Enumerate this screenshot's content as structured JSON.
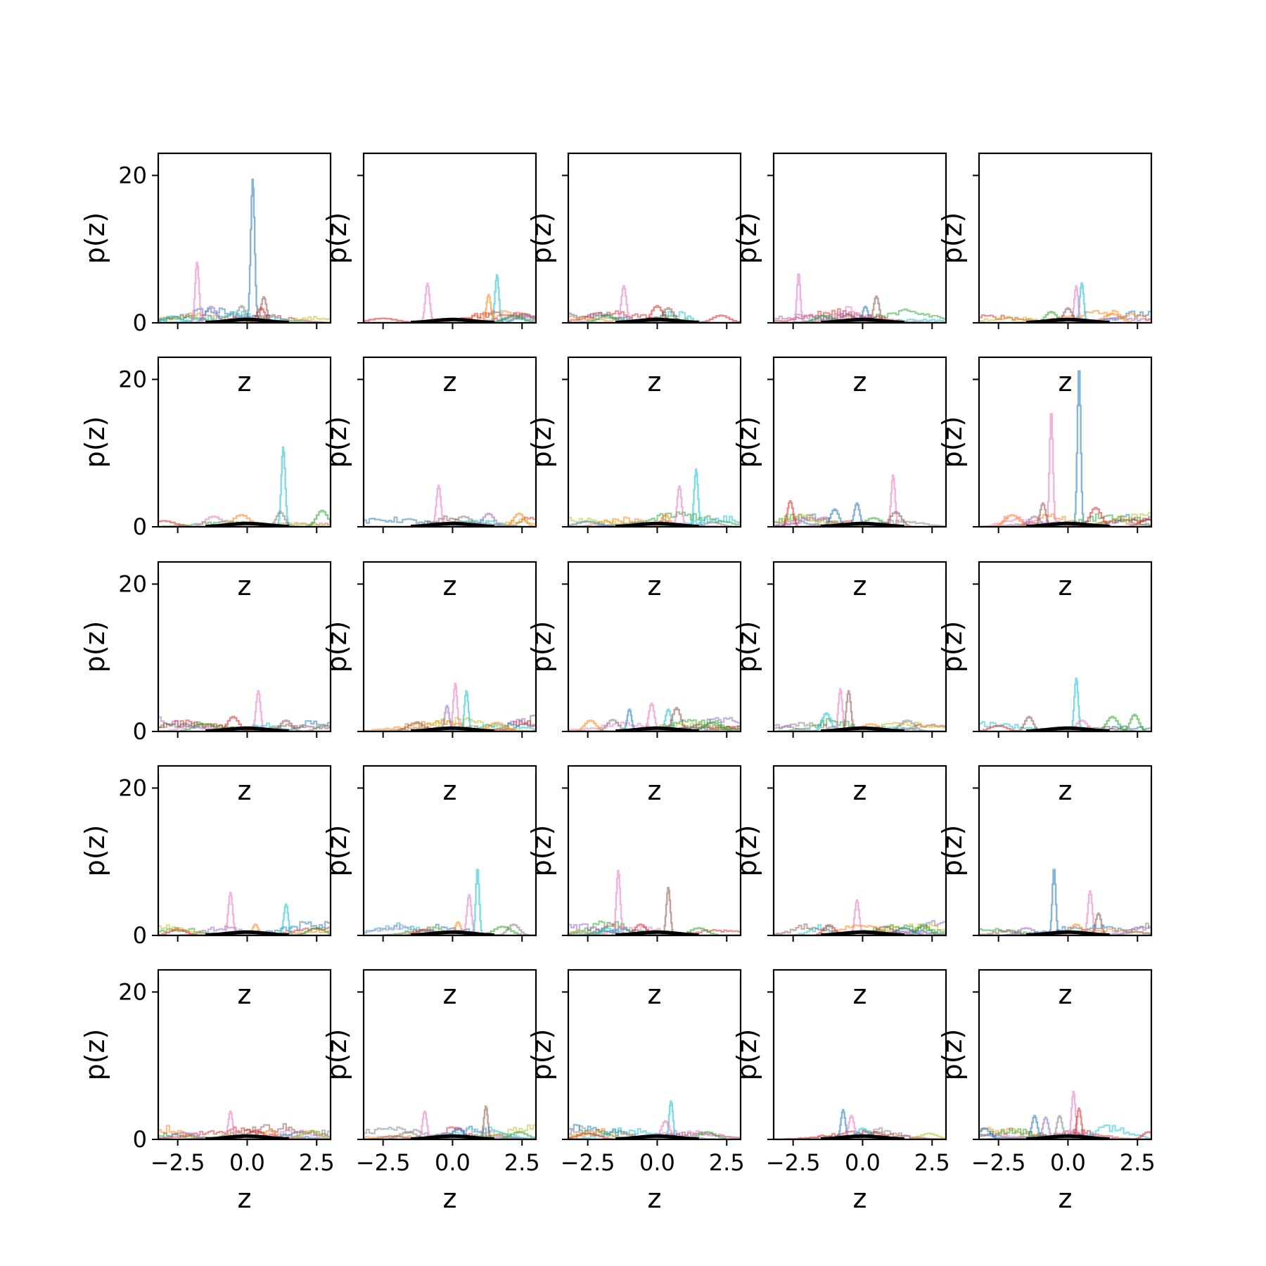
{
  "figure": {
    "rows": 5,
    "cols": 5,
    "sharex": true,
    "sharey": true,
    "bottom_ticklabels_only_last_row": true,
    "left_ticklabels_only_first_col": true
  },
  "chart_data": {
    "type": "line",
    "subtype": "step-histogram-grid",
    "xlabel": "z",
    "ylabel": "p(z)",
    "xlim": [
      -3.2,
      3.0
    ],
    "ylim": [
      0,
      23
    ],
    "xticks": [
      -2.5,
      0.0,
      2.5
    ],
    "xtick_labels": [
      "−2.5",
      "0.0",
      "2.5"
    ],
    "yticks": [
      0,
      20
    ],
    "ytick_labels": [
      "0",
      "20"
    ],
    "grid": false,
    "legend": "none",
    "palette": [
      "#1f77b4",
      "#ff7f0e",
      "#2ca02c",
      "#d62728",
      "#9467bd",
      "#8c564b",
      "#e377c2",
      "#7f7f7f",
      "#bcbd22",
      "#17becf"
    ],
    "reference_color": "#000000",
    "panels": [
      {
        "peaks": [
          {
            "c": 0,
            "x": 0.2,
            "h": 19.5,
            "w": 0.07
          },
          {
            "c": 6,
            "x": -1.8,
            "h": 8.2,
            "w": 0.07
          },
          {
            "c": 5,
            "x": 0.6,
            "h": 3.5,
            "w": 0.1
          },
          {
            "c": 4,
            "x": -1.3,
            "h": 2.2,
            "w": 0.2
          },
          {
            "c": 9,
            "x": -2.7,
            "h": 0.9,
            "w": 0.3
          },
          {
            "c": 3,
            "x": 0.5,
            "h": 2.0,
            "w": 0.15
          },
          {
            "c": 7,
            "x": -0.2,
            "h": 2.3,
            "w": 0.15
          }
        ]
      },
      {
        "peaks": [
          {
            "c": 9,
            "x": 1.6,
            "h": 6.5,
            "w": 0.07
          },
          {
            "c": 6,
            "x": -0.9,
            "h": 5.3,
            "w": 0.08
          },
          {
            "c": 1,
            "x": 1.3,
            "h": 3.8,
            "w": 0.08
          },
          {
            "c": 3,
            "x": -2.5,
            "h": 0.6,
            "w": 0.5
          },
          {
            "c": 7,
            "x": 2.6,
            "h": 1.2,
            "w": 0.3
          },
          {
            "c": 2,
            "x": 2.2,
            "h": 1.0,
            "w": 0.3
          }
        ]
      },
      {
        "peaks": [
          {
            "c": 6,
            "x": -1.2,
            "h": 5.0,
            "w": 0.09
          },
          {
            "c": 3,
            "x": 0.0,
            "h": 2.3,
            "w": 0.2
          },
          {
            "c": 5,
            "x": 0.4,
            "h": 2.0,
            "w": 0.2
          },
          {
            "c": 3,
            "x": 2.3,
            "h": 1.0,
            "w": 0.3
          },
          {
            "c": 2,
            "x": -1.8,
            "h": 1.0,
            "w": 0.3
          }
        ]
      },
      {
        "peaks": [
          {
            "c": 6,
            "x": -2.3,
            "h": 6.8,
            "w": 0.06
          },
          {
            "c": 5,
            "x": 0.5,
            "h": 3.6,
            "w": 0.1
          },
          {
            "c": 0,
            "x": 0.1,
            "h": 2.2,
            "w": 0.1
          },
          {
            "c": 2,
            "x": -1.4,
            "h": 1.0,
            "w": 0.3
          },
          {
            "c": 4,
            "x": -0.5,
            "h": 1.0,
            "w": 0.3
          }
        ]
      },
      {
        "peaks": [
          {
            "c": 9,
            "x": 0.5,
            "h": 5.4,
            "w": 0.07
          },
          {
            "c": 6,
            "x": 0.3,
            "h": 5.0,
            "w": 0.07
          },
          {
            "c": 5,
            "x": 0.0,
            "h": 2.0,
            "w": 0.15
          },
          {
            "c": 1,
            "x": 1.6,
            "h": 1.2,
            "w": 0.3
          },
          {
            "c": 2,
            "x": -0.6,
            "h": 1.5,
            "w": 0.2
          }
        ]
      },
      {
        "peaks": [
          {
            "c": 9,
            "x": 1.3,
            "h": 10.8,
            "w": 0.07
          },
          {
            "c": 2,
            "x": 2.7,
            "h": 2.2,
            "w": 0.2
          },
          {
            "c": 1,
            "x": -0.2,
            "h": 1.6,
            "w": 0.3
          },
          {
            "c": 3,
            "x": -3.0,
            "h": 0.8,
            "w": 0.4
          },
          {
            "c": 6,
            "x": -1.2,
            "h": 1.4,
            "w": 0.3
          },
          {
            "c": 7,
            "x": 1.2,
            "h": 2.0,
            "w": 0.15
          }
        ]
      },
      {
        "peaks": [
          {
            "c": 6,
            "x": -0.5,
            "h": 5.6,
            "w": 0.08
          },
          {
            "c": 1,
            "x": 2.4,
            "h": 1.8,
            "w": 0.2
          },
          {
            "c": 4,
            "x": 1.3,
            "h": 1.8,
            "w": 0.2
          },
          {
            "c": 7,
            "x": 0.4,
            "h": 1.4,
            "w": 0.3
          }
        ]
      },
      {
        "peaks": [
          {
            "c": 9,
            "x": 1.4,
            "h": 7.8,
            "w": 0.07
          },
          {
            "c": 6,
            "x": 0.8,
            "h": 5.5,
            "w": 0.08
          },
          {
            "c": 1,
            "x": 0.3,
            "h": 1.6,
            "w": 0.15
          },
          {
            "c": 0,
            "x": -2.5,
            "h": 0.7,
            "w": 0.4
          },
          {
            "c": 7,
            "x": 2.0,
            "h": 0.6,
            "w": 0.3
          }
        ]
      },
      {
        "peaks": [
          {
            "c": 6,
            "x": 1.1,
            "h": 7.0,
            "w": 0.07
          },
          {
            "c": 3,
            "x": -2.6,
            "h": 3.5,
            "w": 0.1
          },
          {
            "c": 0,
            "x": -0.2,
            "h": 3.2,
            "w": 0.1
          },
          {
            "c": 0,
            "x": -1.0,
            "h": 2.4,
            "w": 0.15
          },
          {
            "c": 5,
            "x": 1.2,
            "h": 2.0,
            "w": 0.2
          },
          {
            "c": 2,
            "x": 0.4,
            "h": 1.2,
            "w": 0.3
          }
        ]
      },
      {
        "peaks": [
          {
            "c": 0,
            "x": 0.4,
            "h": 21.8,
            "w": 0.06
          },
          {
            "c": 6,
            "x": -0.6,
            "h": 15.8,
            "w": 0.06
          },
          {
            "c": 5,
            "x": -0.9,
            "h": 3.2,
            "w": 0.1
          },
          {
            "c": 3,
            "x": 1.0,
            "h": 2.6,
            "w": 0.2
          },
          {
            "c": 3,
            "x": 2.9,
            "h": 1.0,
            "w": 0.3
          },
          {
            "c": 1,
            "x": -2.0,
            "h": 1.6,
            "w": 0.25
          },
          {
            "c": 4,
            "x": -1.2,
            "h": 1.4,
            "w": 0.2
          }
        ]
      },
      {
        "peaks": [
          {
            "c": 6,
            "x": 0.4,
            "h": 5.5,
            "w": 0.08
          },
          {
            "c": 3,
            "x": -0.5,
            "h": 2.0,
            "w": 0.2
          },
          {
            "c": 5,
            "x": 1.4,
            "h": 1.5,
            "w": 0.2
          },
          {
            "c": 2,
            "x": -1.5,
            "h": 1.0,
            "w": 0.4
          },
          {
            "c": 7,
            "x": 2.8,
            "h": 0.8,
            "w": 0.3
          }
        ]
      },
      {
        "peaks": [
          {
            "c": 6,
            "x": 0.1,
            "h": 6.5,
            "w": 0.07
          },
          {
            "c": 9,
            "x": 0.5,
            "h": 5.5,
            "w": 0.07
          },
          {
            "c": 4,
            "x": -0.2,
            "h": 3.5,
            "w": 0.08
          },
          {
            "c": 5,
            "x": -1.3,
            "h": 1.2,
            "w": 0.3
          },
          {
            "c": 1,
            "x": 1.6,
            "h": 1.2,
            "w": 0.3
          }
        ]
      },
      {
        "peaks": [
          {
            "c": 0,
            "x": -1.0,
            "h": 3.0,
            "w": 0.08
          },
          {
            "c": 6,
            "x": -0.2,
            "h": 3.8,
            "w": 0.1
          },
          {
            "c": 9,
            "x": 0.4,
            "h": 3.0,
            "w": 0.1
          },
          {
            "c": 5,
            "x": 0.7,
            "h": 3.2,
            "w": 0.15
          },
          {
            "c": 1,
            "x": -2.4,
            "h": 1.5,
            "w": 0.2
          },
          {
            "c": 2,
            "x": 2.0,
            "h": 1.2,
            "w": 0.3
          },
          {
            "c": 7,
            "x": -1.6,
            "h": 1.6,
            "w": 0.2
          }
        ]
      },
      {
        "peaks": [
          {
            "c": 6,
            "x": -0.8,
            "h": 5.8,
            "w": 0.07
          },
          {
            "c": 5,
            "x": -0.5,
            "h": 5.5,
            "w": 0.08
          },
          {
            "c": 9,
            "x": -1.3,
            "h": 2.5,
            "w": 0.15
          },
          {
            "c": 7,
            "x": 1.6,
            "h": 1.5,
            "w": 0.25
          },
          {
            "c": 1,
            "x": 0.3,
            "h": 1.0,
            "w": 0.3
          }
        ]
      },
      {
        "peaks": [
          {
            "c": 9,
            "x": 0.3,
            "h": 7.2,
            "w": 0.07
          },
          {
            "c": 5,
            "x": -1.4,
            "h": 2.0,
            "w": 0.15
          },
          {
            "c": 2,
            "x": 1.6,
            "h": 2.0,
            "w": 0.2
          },
          {
            "c": 2,
            "x": 2.4,
            "h": 2.3,
            "w": 0.15
          },
          {
            "c": 3,
            "x": -2.5,
            "h": 0.8,
            "w": 0.3
          },
          {
            "c": 6,
            "x": 0.5,
            "h": 1.5,
            "w": 0.2
          }
        ]
      },
      {
        "peaks": [
          {
            "c": 6,
            "x": -0.6,
            "h": 5.8,
            "w": 0.08
          },
          {
            "c": 9,
            "x": 1.4,
            "h": 4.2,
            "w": 0.08
          },
          {
            "c": 1,
            "x": 0.3,
            "h": 1.5,
            "w": 0.1
          },
          {
            "c": 3,
            "x": -2.5,
            "h": 0.8,
            "w": 0.3
          },
          {
            "c": 2,
            "x": 2.5,
            "h": 1.0,
            "w": 0.3
          }
        ]
      },
      {
        "peaks": [
          {
            "c": 9,
            "x": 0.9,
            "h": 9.2,
            "w": 0.06
          },
          {
            "c": 6,
            "x": 0.6,
            "h": 5.5,
            "w": 0.08
          },
          {
            "c": 1,
            "x": 0.2,
            "h": 1.8,
            "w": 0.1
          },
          {
            "c": 7,
            "x": 2.2,
            "h": 1.5,
            "w": 0.2
          },
          {
            "c": 2,
            "x": 1.8,
            "h": 1.2,
            "w": 0.3
          },
          {
            "c": 3,
            "x": -1.0,
            "h": 0.8,
            "w": 0.3
          }
        ]
      },
      {
        "peaks": [
          {
            "c": 6,
            "x": -1.4,
            "h": 8.8,
            "w": 0.07
          },
          {
            "c": 5,
            "x": 0.4,
            "h": 6.5,
            "w": 0.07
          },
          {
            "c": 3,
            "x": -0.6,
            "h": 1.5,
            "w": 0.2
          },
          {
            "c": 9,
            "x": -1.8,
            "h": 1.0,
            "w": 0.2
          },
          {
            "c": 2,
            "x": 1.5,
            "h": 1.0,
            "w": 0.3
          }
        ]
      },
      {
        "peaks": [
          {
            "c": 6,
            "x": -0.2,
            "h": 4.8,
            "w": 0.08
          },
          {
            "c": 3,
            "x": -1.2,
            "h": 1.4,
            "w": 0.2
          },
          {
            "c": 2,
            "x": 2.2,
            "h": 1.5,
            "w": 0.2
          },
          {
            "c": 0,
            "x": 1.5,
            "h": 1.0,
            "w": 0.3
          },
          {
            "c": 5,
            "x": 0.8,
            "h": 1.2,
            "w": 0.3
          }
        ]
      },
      {
        "peaks": [
          {
            "c": 0,
            "x": -0.5,
            "h": 9.2,
            "w": 0.06
          },
          {
            "c": 6,
            "x": 0.8,
            "h": 6.0,
            "w": 0.08
          },
          {
            "c": 5,
            "x": 1.1,
            "h": 3.0,
            "w": 0.1
          },
          {
            "c": 1,
            "x": 0.3,
            "h": 1.5,
            "w": 0.2
          },
          {
            "c": 4,
            "x": -1.5,
            "h": 1.0,
            "w": 0.3
          }
        ]
      },
      {
        "peaks": [
          {
            "c": 6,
            "x": -0.6,
            "h": 3.8,
            "w": 0.08
          },
          {
            "c": 8,
            "x": 2.3,
            "h": 1.2,
            "w": 0.3
          },
          {
            "c": 4,
            "x": -2.3,
            "h": 0.9,
            "w": 0.4
          },
          {
            "c": 3,
            "x": 0.3,
            "h": 1.2,
            "w": 0.3
          },
          {
            "c": 1,
            "x": 0.8,
            "h": 1.2,
            "w": 0.2
          }
        ]
      },
      {
        "peaks": [
          {
            "c": 6,
            "x": -1.0,
            "h": 3.8,
            "w": 0.08
          },
          {
            "c": 5,
            "x": 1.2,
            "h": 4.5,
            "w": 0.07
          },
          {
            "c": 7,
            "x": -1.6,
            "h": 1.0,
            "w": 0.3
          },
          {
            "c": 2,
            "x": 2.4,
            "h": 1.0,
            "w": 0.3
          },
          {
            "c": 0,
            "x": 0.2,
            "h": 1.5,
            "w": 0.2
          }
        ]
      },
      {
        "peaks": [
          {
            "c": 9,
            "x": 0.5,
            "h": 5.2,
            "w": 0.07
          },
          {
            "c": 6,
            "x": 0.3,
            "h": 2.5,
            "w": 0.15
          },
          {
            "c": 3,
            "x": -2.5,
            "h": 0.8,
            "w": 0.4
          },
          {
            "c": 2,
            "x": 1.8,
            "h": 1.0,
            "w": 0.3
          }
        ]
      },
      {
        "peaks": [
          {
            "c": 0,
            "x": -0.7,
            "h": 4.0,
            "w": 0.08
          },
          {
            "c": 6,
            "x": -0.4,
            "h": 3.2,
            "w": 0.1
          },
          {
            "c": 8,
            "x": 2.4,
            "h": 0.8,
            "w": 0.3
          },
          {
            "c": 5,
            "x": 0.5,
            "h": 1.0,
            "w": 0.3
          },
          {
            "c": 9,
            "x": 0.0,
            "h": 1.5,
            "w": 0.2
          }
        ]
      },
      {
        "peaks": [
          {
            "c": 6,
            "x": 0.2,
            "h": 6.5,
            "w": 0.07
          },
          {
            "c": 3,
            "x": 0.4,
            "h": 4.2,
            "w": 0.08
          },
          {
            "c": 0,
            "x": -1.2,
            "h": 3.2,
            "w": 0.1
          },
          {
            "c": 4,
            "x": -0.8,
            "h": 3.0,
            "w": 0.1
          },
          {
            "c": 7,
            "x": -0.3,
            "h": 3.2,
            "w": 0.1
          },
          {
            "c": 0,
            "x": -3.0,
            "h": 1.5,
            "w": 0.2
          },
          {
            "c": 3,
            "x": 2.9,
            "h": 1.0,
            "w": 0.2
          }
        ]
      }
    ]
  }
}
